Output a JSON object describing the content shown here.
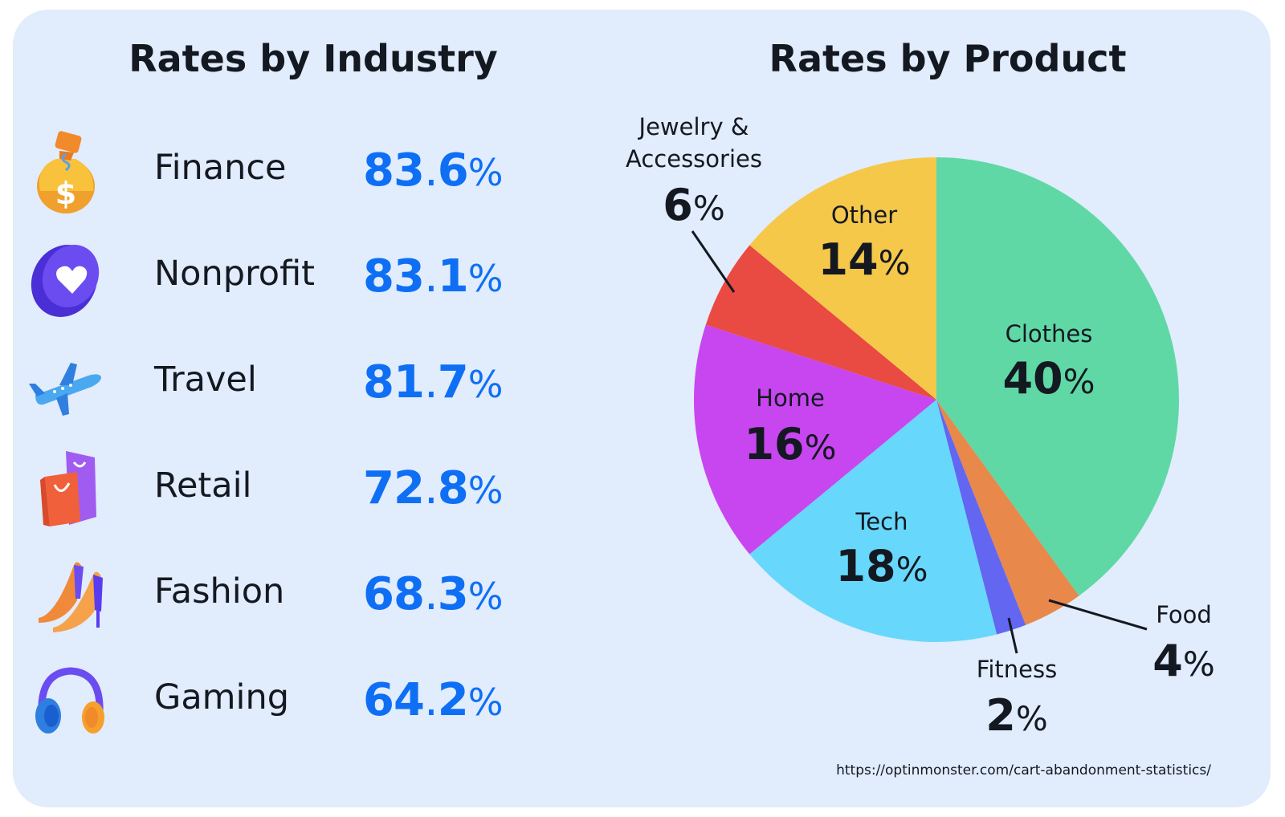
{
  "left_panel": {
    "title": "Rates by Industry",
    "rows": [
      {
        "label": "Finance",
        "int": "83",
        "dec": "6",
        "pct": "%",
        "icon": "money-bag-icon"
      },
      {
        "label": "Nonprofit",
        "int": "83",
        "dec": "1",
        "pct": "%",
        "icon": "heart-coin-icon"
      },
      {
        "label": "Travel",
        "int": "81",
        "dec": "7",
        "pct": "%",
        "icon": "airplane-icon"
      },
      {
        "label": "Retail",
        "int": "72",
        "dec": "8",
        "pct": "%",
        "icon": "shopping-bags-icon"
      },
      {
        "label": "Fashion",
        "int": "68",
        "dec": "3",
        "pct": "%",
        "icon": "high-heels-icon"
      },
      {
        "label": "Gaming",
        "int": "64",
        "dec": "2",
        "pct": "%",
        "icon": "headphones-icon"
      }
    ]
  },
  "right_panel": {
    "title": "Rates by Product"
  },
  "source": "https://optinmonster.com/cart-abandonment-statistics/",
  "colors": {
    "accent": "#0e6ff5",
    "background": "#e1ecfc",
    "text": "#141821"
  },
  "chart_data": [
    {
      "type": "bar",
      "title": "Rates by Industry",
      "categories": [
        "Finance",
        "Nonprofit",
        "Travel",
        "Retail",
        "Fashion",
        "Gaming"
      ],
      "values": [
        83.6,
        83.1,
        81.7,
        72.8,
        68.3,
        64.2
      ],
      "unit": "%"
    },
    {
      "type": "pie",
      "title": "Rates by Product",
      "slices": [
        {
          "name": "Clothes",
          "value": 40,
          "color": "#5fd8a6"
        },
        {
          "name": "Food",
          "value": 4,
          "color": "#e8884a"
        },
        {
          "name": "Fitness",
          "value": 2,
          "color": "#6366f1"
        },
        {
          "name": "Tech",
          "value": 18,
          "color": "#67d8fb"
        },
        {
          "name": "Home",
          "value": 16,
          "color": "#c846f0"
        },
        {
          "name": "Jewelry & Accessories",
          "value": 6,
          "color": "#e94a42"
        },
        {
          "name": "Other",
          "value": 14,
          "color": "#f5c84a"
        }
      ],
      "value_labels": [
        "40",
        "4",
        "2",
        "18",
        "16",
        "6",
        "14"
      ],
      "pct_symbol": "%"
    }
  ]
}
